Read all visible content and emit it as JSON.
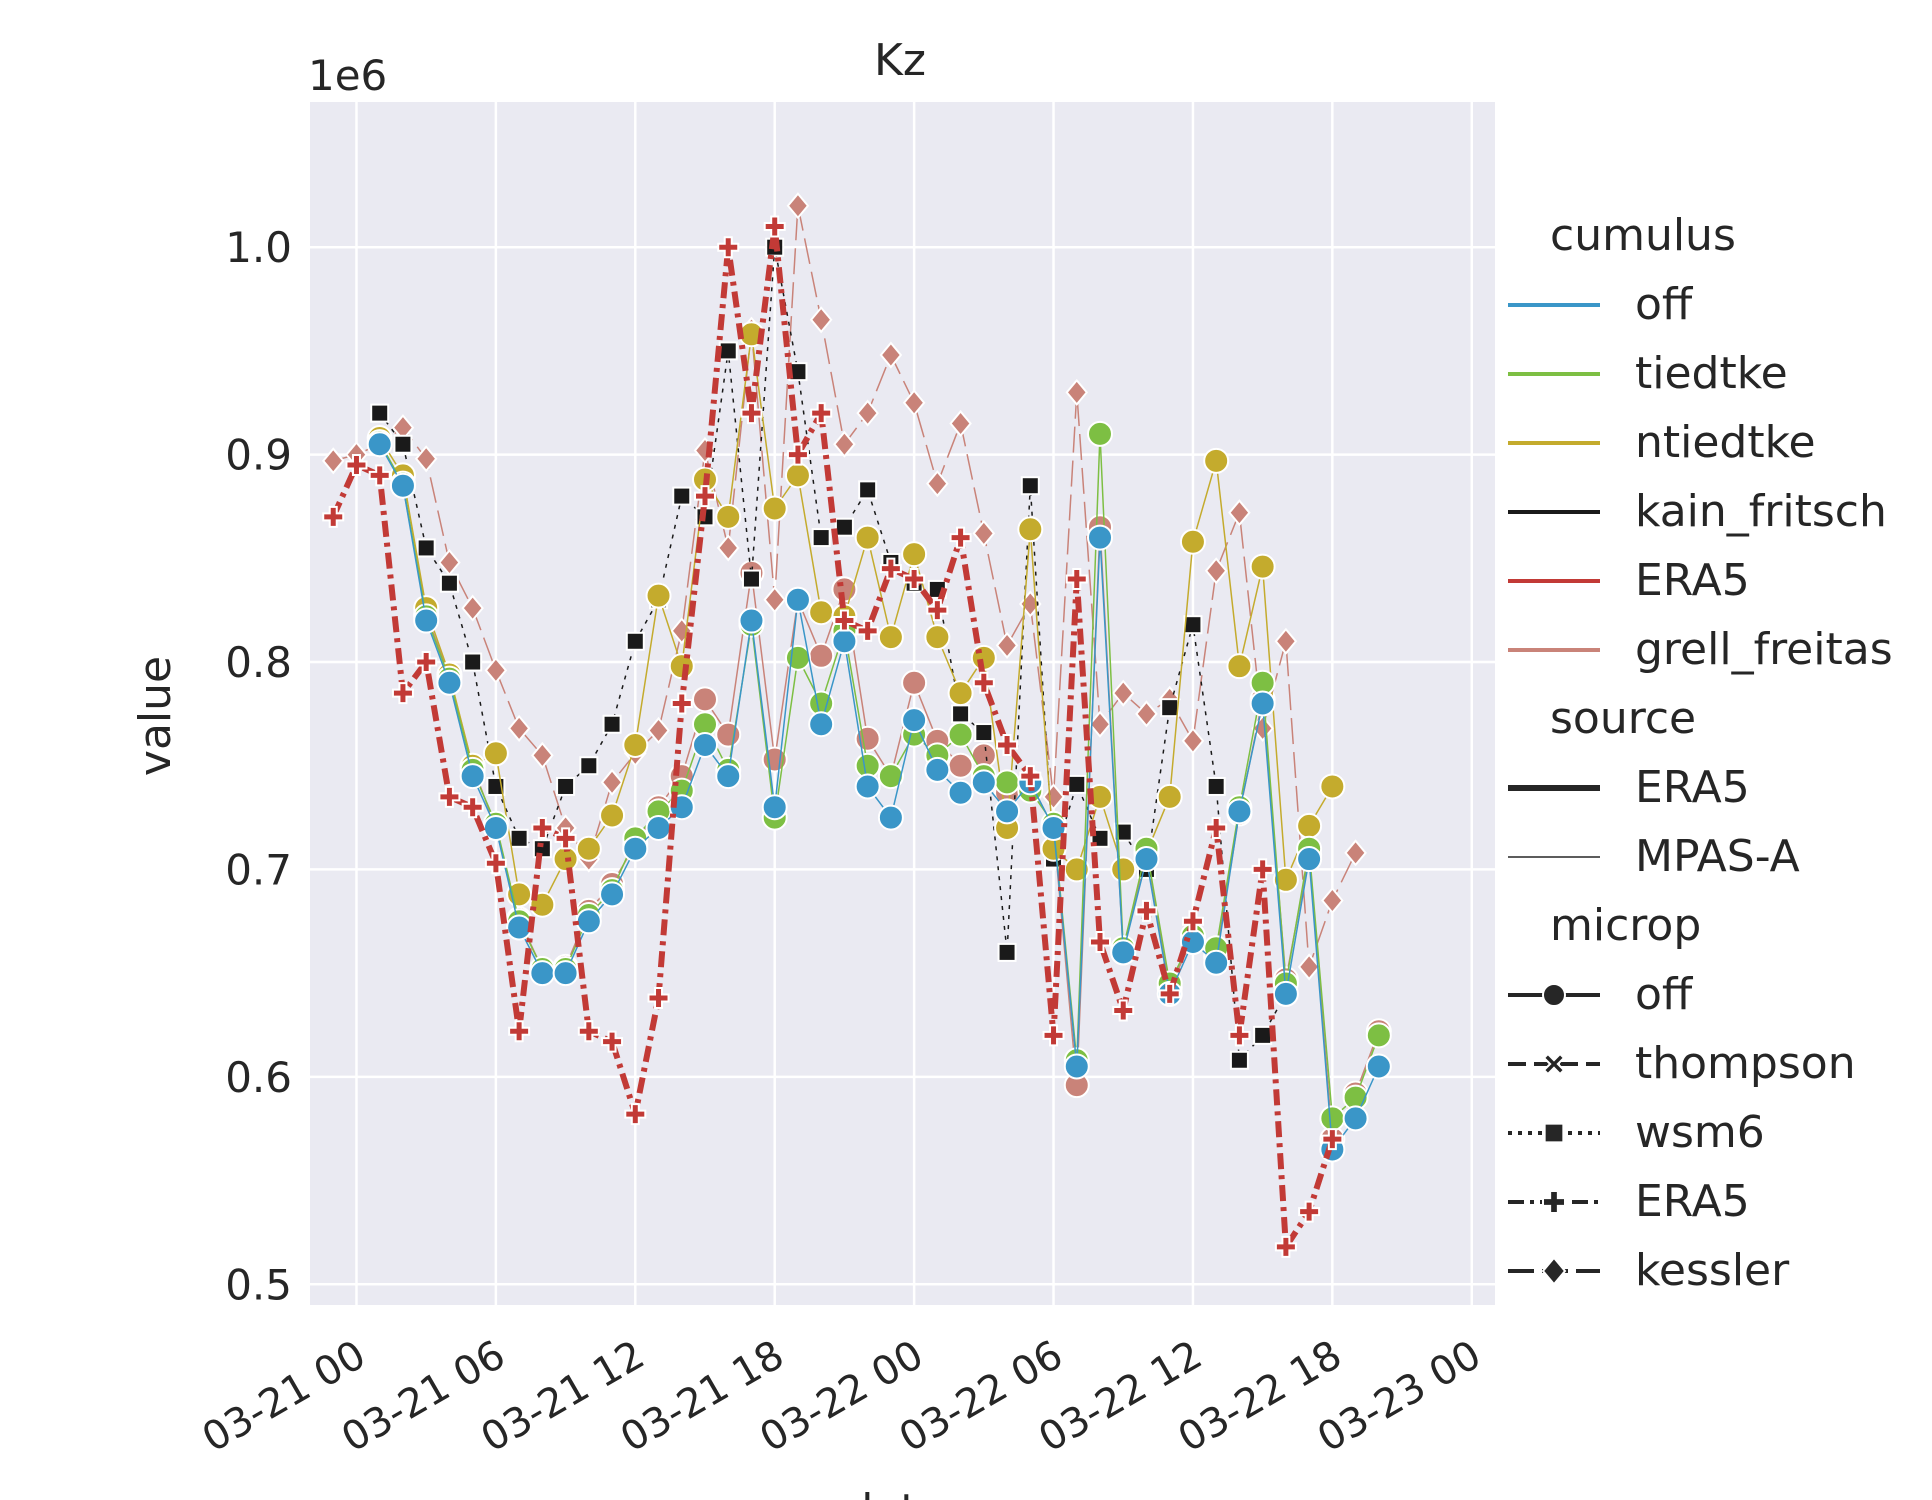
{
  "chart_data": {
    "type": "line",
    "title": "Kz",
    "ylabel": "value",
    "xlabel": "date",
    "y_multiplier_label": "1e6",
    "ylim": [
      0.49,
      1.07
    ],
    "x_start": "03-20 22:00",
    "x_end": "03-23 01:00",
    "x_ticks": [
      "03-21 00",
      "03-21 06",
      "03-21 12",
      "03-21 18",
      "03-22 00",
      "03-22 06",
      "03-22 12",
      "03-22 18",
      "03-23 00"
    ],
    "y_ticks": [
      "0.5",
      "0.6",
      "0.7",
      "0.8",
      "0.9",
      "1.0"
    ],
    "grid": true,
    "legend_position": "right",
    "x": [
      "03-20 23:00",
      "03-21 00:00",
      "03-21 01:00",
      "03-21 02:00",
      "03-21 03:00",
      "03-21 04:00",
      "03-21 05:00",
      "03-21 06:00",
      "03-21 07:00",
      "03-21 08:00",
      "03-21 09:00",
      "03-21 10:00",
      "03-21 11:00",
      "03-21 12:00",
      "03-21 13:00",
      "03-21 14:00",
      "03-21 15:00",
      "03-21 16:00",
      "03-21 17:00",
      "03-21 18:00",
      "03-21 19:00",
      "03-21 20:00",
      "03-21 21:00",
      "03-21 22:00",
      "03-21 23:00",
      "03-22 00:00",
      "03-22 01:00",
      "03-22 02:00",
      "03-22 03:00",
      "03-22 04:00",
      "03-22 05:00",
      "03-22 06:00",
      "03-22 07:00",
      "03-22 08:00",
      "03-22 09:00",
      "03-22 10:00",
      "03-22 11:00",
      "03-22 12:00",
      "03-22 13:00",
      "03-22 14:00",
      "03-22 15:00",
      "03-22 16:00",
      "03-22 17:00",
      "03-22 18:00",
      "03-22 19:00",
      "03-22 20:00",
      "03-22 21:00",
      "03-22 22:00",
      "03-22 23:00"
    ],
    "series": [
      {
        "cumulus": "ERA5",
        "source": "ERA5",
        "microp": "ERA5",
        "values": [
          0.87,
          0.895,
          0.89,
          0.785,
          0.8,
          0.735,
          0.73,
          0.703,
          0.622,
          0.72,
          0.715,
          0.622,
          0.617,
          0.582,
          0.638,
          0.78,
          0.88,
          1.0,
          0.92,
          1.01,
          0.9,
          0.92,
          0.82,
          0.815,
          0.845,
          0.84,
          0.825,
          0.86,
          0.79,
          0.76,
          0.745,
          0.62,
          0.84,
          0.665,
          0.632,
          0.68,
          0.64,
          0.675,
          0.72,
          0.62,
          0.7,
          0.518,
          0.535,
          0.57,
          null,
          null,
          null,
          null,
          null
        ]
      },
      {
        "cumulus": "off",
        "source": "MPAS-A",
        "microp": "off",
        "values": [
          null,
          null,
          0.905,
          0.885,
          0.82,
          0.79,
          0.745,
          0.72,
          0.672,
          0.65,
          0.65,
          0.675,
          0.688,
          0.71,
          0.72,
          0.73,
          0.76,
          0.745,
          0.82,
          0.73,
          0.83,
          0.77,
          0.81,
          0.74,
          0.725,
          0.772,
          0.748,
          0.737,
          0.742,
          0.728,
          0.742,
          0.72,
          0.605,
          0.86,
          0.66,
          0.705,
          0.64,
          0.665,
          0.655,
          0.728,
          0.78,
          0.64,
          0.705,
          0.565,
          0.58,
          0.605,
          null,
          null,
          null
        ]
      },
      {
        "cumulus": "tiedtke",
        "source": "MPAS-A",
        "microp": "off",
        "values": [
          null,
          null,
          0.906,
          0.886,
          0.822,
          0.792,
          0.748,
          0.722,
          0.675,
          0.652,
          0.652,
          0.678,
          0.69,
          0.715,
          0.728,
          0.738,
          0.77,
          0.748,
          0.818,
          0.725,
          0.802,
          0.78,
          0.815,
          0.75,
          0.745,
          0.765,
          0.755,
          0.765,
          0.745,
          0.742,
          0.738,
          0.722,
          0.608,
          0.91,
          0.662,
          0.71,
          0.645,
          0.668,
          0.662,
          0.73,
          0.79,
          0.645,
          0.71,
          0.58,
          0.59,
          0.62,
          null,
          null,
          null
        ]
      },
      {
        "cumulus": "ntiedtke",
        "source": "MPAS-A",
        "microp": "off",
        "values": [
          null,
          null,
          0.908,
          0.89,
          0.826,
          0.794,
          0.75,
          0.756,
          0.688,
          0.683,
          0.705,
          0.71,
          0.726,
          0.76,
          0.832,
          0.798,
          0.888,
          0.87,
          0.958,
          0.874,
          0.89,
          0.824,
          0.822,
          0.86,
          0.812,
          0.852,
          0.812,
          0.785,
          0.802,
          0.72,
          0.864,
          0.71,
          0.7,
          0.735,
          0.7,
          0.708,
          0.735,
          0.858,
          0.897,
          0.798,
          0.846,
          0.695,
          0.721,
          0.74,
          null,
          null,
          null,
          null,
          null
        ]
      },
      {
        "cumulus": "kain_fritsch",
        "source": "MPAS-A",
        "microp": "wsm6",
        "values": [
          null,
          null,
          0.92,
          0.905,
          0.855,
          0.838,
          0.8,
          0.74,
          0.715,
          0.71,
          0.74,
          0.75,
          0.77,
          0.81,
          0.83,
          0.88,
          0.87,
          0.95,
          0.84,
          1.0,
          0.94,
          0.86,
          0.865,
          0.883,
          0.848,
          0.838,
          0.835,
          0.775,
          0.766,
          0.66,
          0.885,
          0.705,
          0.741,
          0.715,
          0.718,
          0.7,
          0.778,
          0.818,
          0.74,
          0.608,
          0.62,
          0.64,
          null,
          null,
          null,
          null,
          null,
          null,
          null
        ]
      },
      {
        "cumulus": "grell_freitas",
        "source": "MPAS-A",
        "microp": "kessler",
        "values": [
          0.897,
          0.9,
          0.905,
          0.913,
          0.898,
          0.848,
          0.826,
          0.796,
          0.768,
          0.755,
          0.72,
          0.705,
          0.742,
          0.756,
          0.767,
          0.815,
          0.902,
          0.855,
          0.96,
          0.83,
          1.02,
          0.965,
          0.905,
          0.92,
          0.948,
          0.925,
          0.886,
          0.915,
          0.862,
          0.808,
          0.828,
          0.735,
          0.93,
          0.77,
          0.785,
          0.775,
          0.782,
          0.762,
          0.844,
          0.872,
          0.768,
          0.81,
          0.653,
          0.685,
          0.708,
          null,
          null,
          null,
          null
        ]
      },
      {
        "cumulus": "grell_freitas",
        "source": "MPAS-A",
        "microp": "off",
        "values": [
          null,
          null,
          null,
          0.885,
          0.823,
          0.793,
          0.75,
          0.72,
          0.676,
          0.652,
          0.653,
          0.68,
          0.693,
          0.712,
          0.73,
          0.745,
          0.782,
          0.765,
          0.843,
          0.753,
          0.83,
          0.803,
          0.835,
          0.763,
          0.745,
          0.79,
          0.762,
          0.75,
          0.755,
          0.737,
          0.742,
          0.72,
          0.596,
          0.865,
          0.66,
          0.709,
          0.643,
          0.667,
          0.658,
          0.727,
          0.782,
          0.647,
          0.707,
          0.57,
          0.592,
          0.622,
          null,
          null,
          null
        ]
      }
    ]
  },
  "legend": {
    "sections": [
      {
        "title": "cumulus",
        "entries": [
          {
            "label": "off",
            "kind": "color",
            "color": "#3a96c8"
          },
          {
            "label": "tiedtke",
            "kind": "color",
            "color": "#7dbf43"
          },
          {
            "label": "ntiedtke",
            "kind": "color",
            "color": "#c4ab2d"
          },
          {
            "label": "kain_fritsch",
            "kind": "color",
            "color": "#1a1a1a"
          },
          {
            "label": "ERA5",
            "kind": "color",
            "color": "#c23a36"
          },
          {
            "label": "grell_freitas",
            "kind": "color",
            "color": "#c98379"
          }
        ]
      },
      {
        "title": "source",
        "entries": [
          {
            "label": "ERA5",
            "kind": "width",
            "width": 6
          },
          {
            "label": "MPAS-A",
            "kind": "width",
            "width": 1.5
          }
        ]
      },
      {
        "title": "microp",
        "entries": [
          {
            "label": "off",
            "kind": "marker",
            "marker": "circle",
            "dash": "solid"
          },
          {
            "label": "thompson",
            "kind": "marker",
            "marker": "x",
            "dash": "dashed"
          },
          {
            "label": "wsm6",
            "kind": "marker",
            "marker": "square",
            "dash": "dotted"
          },
          {
            "label": "ERA5",
            "kind": "marker",
            "marker": "plus",
            "dash": "dashdot"
          },
          {
            "label": "kessler",
            "kind": "marker",
            "marker": "diamond",
            "dash": "longdash"
          }
        ]
      }
    ]
  }
}
